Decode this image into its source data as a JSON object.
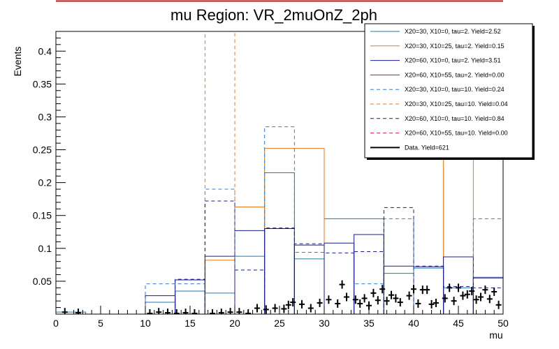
{
  "chart_data": {
    "type": "histogram",
    "title": "mu Region: VR_2muOnZ_2ph",
    "xlabel": "mu",
    "ylabel": "Events",
    "xlim": [
      0,
      50
    ],
    "ylim": [
      0,
      0.43
    ],
    "x_ticks": [
      "0",
      "5",
      "10",
      "15",
      "20",
      "25",
      "30",
      "35",
      "40",
      "45",
      "50"
    ],
    "y_ticks": [
      "0.05",
      "0.1",
      "0.15",
      "0.2",
      "0.25",
      "0.3",
      "0.35",
      "0.4"
    ],
    "legend_position": "top-right",
    "series": [
      {
        "name": "X20=30, X10=0, tau=2. Yield=2.52",
        "color": "#1f77b4",
        "dash": "solid",
        "bins": [
          [
            0,
            3.33,
            0.003
          ],
          [
            10,
            13.33,
            0.018
          ],
          [
            13.33,
            16.67,
            0.035
          ],
          [
            16.67,
            20,
            0.032
          ],
          [
            20,
            23.33,
            0.088
          ],
          [
            23.33,
            26.67,
            0.215
          ],
          [
            26.67,
            30,
            0.084
          ],
          [
            30,
            36.67,
            0.145
          ],
          [
            36.67,
            40,
            0.062
          ],
          [
            40,
            43.33,
            0.07
          ],
          [
            43.33,
            46.67,
            0.04
          ],
          [
            46.67,
            50,
            0.056
          ]
        ]
      },
      {
        "name": "X20=30, X10=25, tau=2. Yield=0.15",
        "color": "#e8781a",
        "dash": "solid",
        "bins": [
          [
            16.67,
            20,
            0.082
          ],
          [
            20,
            23.33,
            0.163
          ],
          [
            23.33,
            30,
            0.252
          ],
          [
            43.33,
            46.67,
            0.43
          ]
        ]
      },
      {
        "name": "X20=60, X10=0, tau=2. Yield=3.51",
        "color": "#1a1a8c",
        "dash": "solid",
        "bins": [
          [
            10,
            13.33,
            0.028
          ],
          [
            13.33,
            16.67,
            0.052
          ],
          [
            16.67,
            20,
            0.088
          ],
          [
            20,
            23.33,
            0.127
          ],
          [
            23.33,
            26.67,
            0.13
          ],
          [
            26.67,
            30,
            0.105
          ],
          [
            30,
            33.33,
            0.108
          ],
          [
            33.33,
            36.67,
            0.121
          ],
          [
            36.67,
            40,
            0.073
          ],
          [
            40,
            43.33,
            0.072
          ],
          [
            43.33,
            46.67,
            0.087
          ],
          [
            46.67,
            50,
            0.055
          ]
        ]
      },
      {
        "name": "X20=60, X10=55, tau=2. Yield=0.00",
        "color": "#cc1111",
        "dash": "solid",
        "bins": []
      },
      {
        "name": "X20=30, X10=0, tau=10. Yield=0.24",
        "color": "#2a7fd4",
        "dash": "dashed",
        "bins": [
          [
            10,
            16.67,
            0.046
          ],
          [
            16.67,
            20,
            0.19
          ],
          [
            23.33,
            26.67,
            0.285
          ],
          [
            26.67,
            30,
            0.094
          ],
          [
            33.33,
            36.67,
            0.046
          ],
          [
            36.67,
            40,
            0.145
          ],
          [
            46.67,
            50,
            0.145
          ]
        ]
      },
      {
        "name": "X20=30, X10=25, tau=10. Yield=0.04",
        "color": "#e8781a",
        "dash": "dashed",
        "bins": [
          [
            16.67,
            20,
            0.43
          ]
        ]
      },
      {
        "name": "X20=60, X10=0, tau=10. Yield=0.84",
        "color": "#1a1a8c",
        "dash": "dashed",
        "bins": [
          [
            13.33,
            16.67,
            0.053
          ],
          [
            16.67,
            20,
            0.172
          ],
          [
            20,
            23.33,
            0.067
          ],
          [
            23.33,
            26.67,
            0.131
          ],
          [
            26.67,
            30,
            0.107
          ],
          [
            30,
            33.33,
            0.093
          ],
          [
            33.33,
            36.67,
            0.095
          ],
          [
            36.67,
            40,
            0.162
          ],
          [
            40,
            43.33,
            0.073
          ],
          [
            43.33,
            46.67,
            0.042
          ],
          [
            46.67,
            50,
            0.04
          ]
        ]
      },
      {
        "name": "X20=60, X10=55, tau=10. Yield=0.00",
        "color": "#cc2244",
        "dash": "dashed",
        "bins": []
      },
      {
        "name": "Data. Yield=621",
        "color": "#000000",
        "dash": "solid",
        "type": "points",
        "points": [
          [
            1,
            0.003
          ],
          [
            2.5,
            0.002
          ],
          [
            10.5,
            0.001
          ],
          [
            11.5,
            0.003
          ],
          [
            12.5,
            0.002
          ],
          [
            13.5,
            0.001
          ],
          [
            14.5,
            0.002
          ],
          [
            15.5,
            0.001
          ],
          [
            17.5,
            0.001
          ],
          [
            18.5,
            0.002
          ],
          [
            19.5,
            0.003
          ],
          [
            20.5,
            0.003
          ],
          [
            21.5,
            0.001
          ],
          [
            22.5,
            0.009
          ],
          [
            23.5,
            0.007
          ],
          [
            24.5,
            0.009
          ],
          [
            25.5,
            0.008
          ],
          [
            26.5,
            0.018
          ],
          [
            27.5,
            0.015
          ],
          [
            28.5,
            0.009
          ],
          [
            29.5,
            0.017
          ],
          [
            30.5,
            0.022
          ],
          [
            31.5,
            0.016
          ],
          [
            32.5,
            0.026
          ],
          [
            33.5,
            0.022
          ],
          [
            34.5,
            0.024
          ],
          [
            35.5,
            0.032
          ],
          [
            36.5,
            0.038
          ],
          [
            37.5,
            0.029
          ],
          [
            38.5,
            0.018
          ],
          [
            39.5,
            0.028
          ],
          [
            40.5,
            0.016
          ],
          [
            41.5,
            0.037
          ],
          [
            42.5,
            0.017
          ],
          [
            43.5,
            0.024
          ],
          [
            44.5,
            0.02
          ],
          [
            45.5,
            0.028
          ],
          [
            46.5,
            0.035
          ],
          [
            47.5,
            0.026
          ],
          [
            48.5,
            0.023
          ],
          [
            49.5,
            0.014
          ],
          [
            26,
            0.014
          ],
          [
            32,
            0.045
          ],
          [
            34,
            0.016
          ],
          [
            37,
            0.02
          ],
          [
            38,
            0.024
          ],
          [
            40,
            0.038
          ],
          [
            41,
            0.037
          ],
          [
            42,
            0.015
          ],
          [
            44,
            0.04
          ],
          [
            45,
            0.04
          ],
          [
            46,
            0.03
          ],
          [
            47,
            0.022
          ],
          [
            48,
            0.037
          ],
          [
            49,
            0.034
          ],
          [
            36,
            0.021
          ],
          [
            35,
            0.013
          ]
        ]
      }
    ]
  }
}
